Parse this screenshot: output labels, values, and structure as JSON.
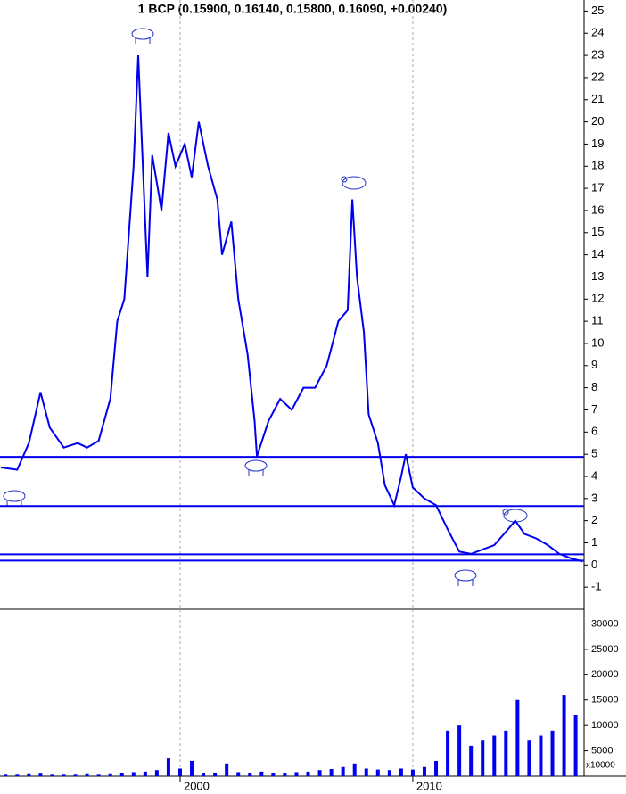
{
  "chart_data": [
    {
      "type": "line",
      "title": "1 BCP (0.15900, 0.16140, 0.15800, 0.16090, +0.00240)",
      "color": "#0000ee",
      "xlim": [
        1992.26,
        2017.36
      ],
      "xticks": [
        2000,
        2010
      ],
      "ylim": [
        -2.0,
        25.5
      ],
      "yticks": [
        -1,
        0,
        1,
        2,
        3,
        4,
        5,
        6,
        7,
        8,
        9,
        10,
        11,
        12,
        13,
        14,
        15,
        16,
        17,
        18,
        19,
        20,
        21,
        22,
        23,
        24,
        25
      ],
      "hlines": [
        4.88,
        2.66,
        0.48,
        0.2
      ],
      "grid": true,
      "series": [
        {
          "x": [
            1992.3,
            1993.0,
            1993.5,
            1994.0,
            1994.4,
            1995.0,
            1995.6,
            1996.0,
            1996.5,
            1997.0,
            1997.3,
            1997.6,
            1998.0,
            1998.2,
            1998.4,
            1998.6,
            1998.8,
            1999.2,
            1999.5,
            1999.8,
            2000.2,
            2000.5,
            2000.8,
            2001.2,
            2001.6,
            2001.8,
            2002.2,
            2002.5,
            2002.9,
            2003.2,
            2003.3,
            2003.8,
            2004.3,
            2004.8,
            2005.3,
            2005.8,
            2006.3,
            2006.8,
            2007.2,
            2007.4,
            2007.6,
            2007.9,
            2008.1,
            2008.5,
            2008.8,
            2009.2,
            2009.5,
            2009.7,
            2010.0,
            2010.5,
            2011.0,
            2011.5,
            2012.0,
            2012.5,
            2013.0,
            2013.5,
            2014.0,
            2014.4,
            2014.8,
            2015.3,
            2015.8,
            2016.3,
            2016.8,
            2017.3
          ],
          "values": [
            4.4,
            4.3,
            5.5,
            7.8,
            6.2,
            5.3,
            5.5,
            5.3,
            5.6,
            7.5,
            11.0,
            12.0,
            18.0,
            23.0,
            18.0,
            13.0,
            18.5,
            16.0,
            19.5,
            18.0,
            19.0,
            17.5,
            20.0,
            18.0,
            16.5,
            14.0,
            15.5,
            12.0,
            9.5,
            6.5,
            4.9,
            6.5,
            7.5,
            7.0,
            8.0,
            8.0,
            9.0,
            11.0,
            11.5,
            16.5,
            13.0,
            10.5,
            6.8,
            5.5,
            3.6,
            2.7,
            4.0,
            5.0,
            3.5,
            3.0,
            2.7,
            1.6,
            0.6,
            0.5,
            0.7,
            0.9,
            1.5,
            2.0,
            1.4,
            1.2,
            0.9,
            0.5,
            0.3,
            0.16
          ]
        }
      ]
    },
    {
      "type": "bar",
      "color": "#0000ee",
      "unit_label": "x10000",
      "xlim": [
        1992.26,
        2017.36
      ],
      "xticks": [
        2000,
        2010
      ],
      "ylim": [
        0,
        32900
      ],
      "yticks": [
        5000,
        10000,
        15000,
        20000,
        25000,
        30000
      ],
      "grid": true,
      "x": [
        1992.5,
        1993,
        1993.5,
        1994,
        1994.5,
        1995,
        1995.5,
        1996,
        1996.5,
        1997,
        1997.5,
        1998,
        1998.5,
        1999,
        1999.5,
        2000,
        2000.5,
        2001,
        2001.5,
        2002,
        2002.5,
        2003,
        2003.5,
        2004,
        2004.5,
        2005,
        2005.5,
        2006,
        2006.5,
        2007,
        2007.5,
        2008,
        2008.5,
        2009,
        2009.5,
        2010,
        2010.5,
        2011,
        2011.5,
        2012,
        2012.5,
        2013,
        2013.5,
        2014,
        2014.5,
        2015,
        2015.5,
        2016,
        2016.5,
        2017
      ],
      "values": [
        300,
        300,
        400,
        500,
        300,
        300,
        300,
        400,
        300,
        400,
        600,
        800,
        900,
        1200,
        3500,
        1500,
        3000,
        700,
        600,
        2500,
        800,
        700,
        900,
        600,
        700,
        800,
        900,
        1200,
        1400,
        1800,
        2500,
        1500,
        1300,
        1200,
        1500,
        1300,
        1800,
        3000,
        9000,
        10000,
        6000,
        7000,
        8000,
        9000,
        15000,
        7000,
        8000,
        9000,
        16000,
        12000
      ]
    }
  ]
}
